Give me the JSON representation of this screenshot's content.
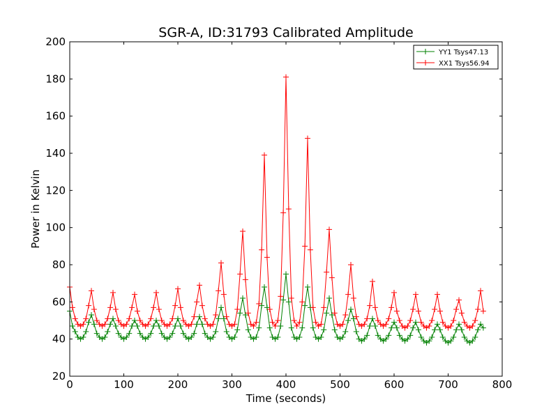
{
  "chart_data": {
    "type": "line",
    "title": "SGR-A, ID:31793 Calibrated Amplitude",
    "xlabel": "Time (seconds)",
    "ylabel": "Power in Kelvin",
    "xlim": [
      0,
      800
    ],
    "ylim": [
      20,
      200
    ],
    "xticks": [
      0,
      100,
      200,
      300,
      400,
      500,
      600,
      700,
      800
    ],
    "yticks": [
      20,
      40,
      60,
      80,
      100,
      120,
      140,
      160,
      180,
      200
    ],
    "grid": false,
    "legend_position": "top-right",
    "marker": "+",
    "series": [
      {
        "name": "YY1 Tsys47.13",
        "color": "#008000",
        "x": [
          0,
          5,
          10,
          15,
          20,
          25,
          30,
          35,
          40,
          45,
          50,
          55,
          60,
          65,
          70,
          75,
          80,
          85,
          90,
          95,
          100,
          105,
          110,
          115,
          120,
          125,
          130,
          135,
          140,
          145,
          150,
          155,
          160,
          165,
          170,
          175,
          180,
          185,
          190,
          195,
          200,
          205,
          210,
          215,
          220,
          225,
          230,
          235,
          240,
          245,
          250,
          255,
          260,
          265,
          270,
          275,
          280,
          285,
          290,
          295,
          300,
          305,
          310,
          315,
          320,
          325,
          330,
          335,
          340,
          345,
          350,
          355,
          360,
          365,
          370,
          375,
          380,
          385,
          390,
          395,
          400,
          405,
          410,
          415,
          420,
          425,
          430,
          435,
          440,
          445,
          450,
          455,
          460,
          465,
          470,
          475,
          480,
          485,
          490,
          495,
          500,
          505,
          510,
          515,
          520,
          525,
          530,
          535,
          540,
          545,
          550,
          555,
          560,
          565,
          570,
          575,
          580,
          585,
          590,
          595,
          600,
          605,
          610,
          615,
          620,
          625,
          630,
          635,
          640,
          645,
          650,
          655,
          660,
          665,
          670,
          675,
          680,
          685,
          690,
          695,
          700,
          705,
          710,
          715,
          720,
          725,
          730,
          735,
          740,
          745,
          750,
          755,
          760,
          765
        ],
        "values": [
          55,
          47,
          44,
          41,
          40,
          41,
          44,
          49,
          53,
          48,
          43,
          41,
          40,
          41,
          44,
          48,
          51,
          47,
          43,
          41,
          40,
          41,
          43,
          47,
          50,
          47,
          43,
          41,
          40,
          41,
          43,
          47,
          50,
          47,
          43,
          41,
          40,
          41,
          43,
          47,
          51,
          47,
          43,
          41,
          40,
          41,
          43,
          48,
          52,
          48,
          43,
          41,
          40,
          41,
          44,
          51,
          57,
          51,
          44,
          41,
          40,
          41,
          45,
          54,
          62,
          53,
          45,
          41,
          40,
          41,
          46,
          58,
          68,
          57,
          46,
          41,
          40,
          41,
          47,
          61,
          75,
          60,
          46,
          41,
          40,
          41,
          46,
          58,
          68,
          57,
          46,
          41,
          40,
          41,
          45,
          54,
          62,
          53,
          45,
          41,
          40,
          41,
          44,
          50,
          56,
          51,
          44,
          40,
          39,
          40,
          42,
          47,
          51,
          47,
          42,
          40,
          39,
          40,
          42,
          46,
          49,
          46,
          42,
          40,
          39,
          40,
          42,
          46,
          49,
          45,
          41,
          39,
          38,
          39,
          41,
          45,
          48,
          45,
          41,
          39,
          38,
          39,
          41,
          45,
          48,
          45,
          41,
          39,
          38,
          39,
          41,
          45,
          48,
          46
        ]
      },
      {
        "name": "XX1 Tsys56.94",
        "color": "#ff0000",
        "x": [
          0,
          5,
          10,
          15,
          20,
          25,
          30,
          35,
          40,
          45,
          50,
          55,
          60,
          65,
          70,
          75,
          80,
          85,
          90,
          95,
          100,
          105,
          110,
          115,
          120,
          125,
          130,
          135,
          140,
          145,
          150,
          155,
          160,
          165,
          170,
          175,
          180,
          185,
          190,
          195,
          200,
          205,
          210,
          215,
          220,
          225,
          230,
          235,
          240,
          245,
          250,
          255,
          260,
          265,
          270,
          275,
          280,
          285,
          290,
          295,
          300,
          305,
          310,
          315,
          320,
          325,
          330,
          335,
          340,
          345,
          350,
          355,
          360,
          365,
          370,
          375,
          380,
          385,
          390,
          395,
          400,
          405,
          410,
          415,
          420,
          425,
          430,
          435,
          440,
          445,
          450,
          455,
          460,
          465,
          470,
          475,
          480,
          485,
          490,
          495,
          500,
          505,
          510,
          515,
          520,
          525,
          530,
          535,
          540,
          545,
          550,
          555,
          560,
          565,
          570,
          575,
          580,
          585,
          590,
          595,
          600,
          605,
          610,
          615,
          620,
          625,
          630,
          635,
          640,
          645,
          650,
          655,
          660,
          665,
          670,
          675,
          680,
          685,
          690,
          695,
          700,
          705,
          710,
          715,
          720,
          725,
          730,
          735,
          740,
          745,
          750,
          755,
          760,
          765
        ],
        "values": [
          68,
          57,
          51,
          48,
          47,
          48,
          51,
          58,
          66,
          56,
          50,
          48,
          47,
          48,
          51,
          57,
          65,
          56,
          50,
          48,
          47,
          48,
          51,
          57,
          64,
          55,
          50,
          48,
          47,
          48,
          51,
          57,
          65,
          56,
          50,
          48,
          47,
          48,
          51,
          58,
          67,
          57,
          50,
          48,
          47,
          48,
          52,
          60,
          69,
          58,
          51,
          48,
          47,
          48,
          53,
          66,
          81,
          64,
          52,
          48,
          47,
          48,
          56,
          75,
          98,
          72,
          54,
          48,
          47,
          49,
          59,
          88,
          139,
          84,
          56,
          49,
          47,
          50,
          63,
          108,
          181,
          110,
          62,
          50,
          47,
          49,
          60,
          90,
          148,
          88,
          57,
          49,
          47,
          48,
          57,
          76,
          99,
          73,
          54,
          48,
          47,
          48,
          53,
          64,
          80,
          62,
          52,
          48,
          47,
          48,
          51,
          58,
          71,
          57,
          50,
          48,
          47,
          48,
          51,
          57,
          65,
          55,
          50,
          47,
          46,
          47,
          50,
          56,
          64,
          55,
          49,
          47,
          46,
          47,
          50,
          56,
          64,
          55,
          49,
          47,
          46,
          47,
          50,
          56,
          61,
          54,
          49,
          47,
          46,
          47,
          50,
          56,
          66,
          55
        ]
      }
    ]
  }
}
